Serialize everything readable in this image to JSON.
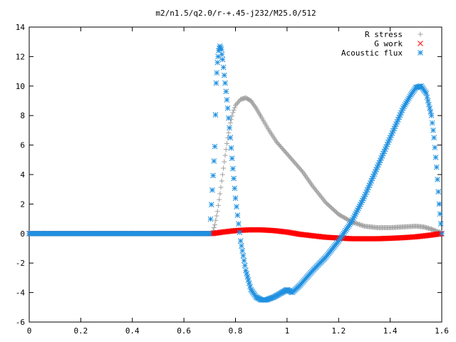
{
  "chart_data": {
    "type": "scatter",
    "title": "m2/n1.5/q2.0/r-+.45-j232/M25.0/512",
    "xlabel": "",
    "ylabel": "",
    "xlim": [
      0,
      1.6
    ],
    "ylim": [
      -6,
      14
    ],
    "x_ticks": [
      "0",
      "0.2",
      "0.4",
      "0.6",
      "0.8",
      "1",
      "1.2",
      "1.4",
      "1.6"
    ],
    "y_ticks": [
      "-6",
      "-4",
      "-2",
      "0",
      "2",
      "4",
      "6",
      "8",
      "10",
      "12",
      "14"
    ],
    "grid": false,
    "legend_position": "top-right",
    "series": [
      {
        "name": "R stress",
        "marker": "+",
        "color": "#a0a0a0",
        "x": [
          0.0,
          0.2,
          0.4,
          0.6,
          0.71,
          0.72,
          0.73,
          0.74,
          0.75,
          0.76,
          0.77,
          0.78,
          0.79,
          0.8,
          0.82,
          0.84,
          0.86,
          0.88,
          0.9,
          0.93,
          0.96,
          1.0,
          1.03,
          1.06,
          1.1,
          1.15,
          1.2,
          1.25,
          1.3,
          1.35,
          1.4,
          1.45,
          1.5,
          1.53,
          1.56,
          1.58,
          1.6
        ],
        "y": [
          0.0,
          0.0,
          0.0,
          0.0,
          0.0,
          0.6,
          1.5,
          2.7,
          4.0,
          5.3,
          6.5,
          7.5,
          8.2,
          8.7,
          9.1,
          9.2,
          9.0,
          8.5,
          7.9,
          7.0,
          6.2,
          5.4,
          4.8,
          4.2,
          3.2,
          2.1,
          1.3,
          0.8,
          0.5,
          0.4,
          0.4,
          0.45,
          0.5,
          0.45,
          0.3,
          0.15,
          0.05
        ]
      },
      {
        "name": "G work",
        "marker": "x",
        "color": "#ff0000",
        "x": [
          0.0,
          0.2,
          0.4,
          0.6,
          0.71,
          0.75,
          0.8,
          0.85,
          0.9,
          0.95,
          1.0,
          1.05,
          1.1,
          1.15,
          1.2,
          1.25,
          1.3,
          1.35,
          1.4,
          1.45,
          1.5,
          1.55,
          1.58,
          1.6
        ],
        "y": [
          0.0,
          0.0,
          0.0,
          0.0,
          0.0,
          0.1,
          0.2,
          0.25,
          0.25,
          0.2,
          0.1,
          -0.05,
          -0.15,
          -0.25,
          -0.3,
          -0.35,
          -0.35,
          -0.35,
          -0.32,
          -0.28,
          -0.22,
          -0.12,
          -0.05,
          0.0
        ]
      },
      {
        "name": "Acoustic flux",
        "marker": "*",
        "color": "#2090e0",
        "x": [
          0.0,
          0.2,
          0.4,
          0.6,
          0.7,
          0.72,
          0.725,
          0.73,
          0.735,
          0.74,
          0.745,
          0.75,
          0.76,
          0.77,
          0.78,
          0.79,
          0.8,
          0.82,
          0.84,
          0.86,
          0.88,
          0.9,
          0.92,
          0.95,
          0.98,
          1.0,
          1.02,
          1.05,
          1.1,
          1.15,
          1.2,
          1.25,
          1.3,
          1.35,
          1.4,
          1.45,
          1.48,
          1.5,
          1.52,
          1.54,
          1.56,
          1.57,
          1.58,
          1.59,
          1.6
        ],
        "y": [
          0.0,
          0.0,
          0.0,
          0.0,
          0.0,
          5.9,
          10.2,
          11.6,
          12.4,
          12.7,
          12.5,
          11.8,
          10.2,
          8.5,
          6.5,
          4.4,
          2.4,
          -0.5,
          -2.5,
          -3.8,
          -4.3,
          -4.5,
          -4.5,
          -4.3,
          -4.0,
          -3.8,
          -4.0,
          -3.5,
          -2.5,
          -1.6,
          -0.5,
          0.8,
          2.5,
          4.5,
          6.5,
          8.5,
          9.4,
          9.9,
          10.0,
          9.5,
          8.0,
          6.5,
          4.5,
          2.0,
          0.0
        ]
      }
    ]
  }
}
